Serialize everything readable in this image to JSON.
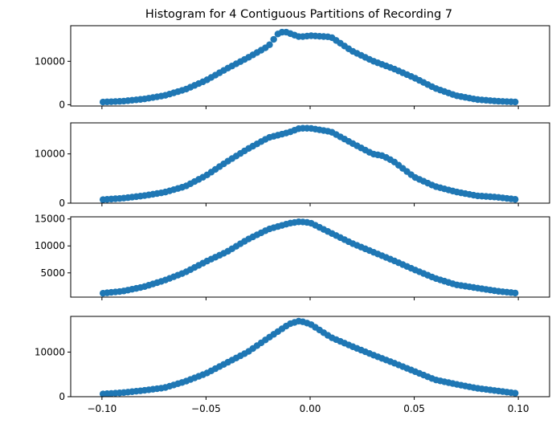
{
  "chart_data": {
    "type": "scatter",
    "title": "Histogram for 4 Contiguous Partitions of Recording 7",
    "shared_x": true,
    "xlim": [
      -0.115,
      0.115
    ],
    "x_ticks": [
      -0.1,
      -0.05,
      0.0,
      0.05,
      0.1
    ],
    "x_tick_labels": [
      "−0.10",
      "−0.05",
      "0.00",
      "0.05",
      "0.10"
    ],
    "x_range": [
      -0.0995,
      0.0985
    ],
    "num_points": 100,
    "color": "#1f77b4",
    "panels": [
      {
        "ylim": [
          -300,
          18200
        ],
        "y_ticks": [
          0,
          10000
        ],
        "y_tick_labels": [
          "0",
          "10000"
        ],
        "anchors": [
          [
            -0.1,
            600
          ],
          [
            -0.09,
            800
          ],
          [
            -0.08,
            1300
          ],
          [
            -0.07,
            2100
          ],
          [
            -0.06,
            3500
          ],
          [
            -0.05,
            5600
          ],
          [
            -0.04,
            8300
          ],
          [
            -0.03,
            10800
          ],
          [
            -0.02,
            13500
          ],
          [
            -0.015,
            16600
          ],
          [
            -0.012,
            16800
          ],
          [
            -0.005,
            15600
          ],
          [
            0.0,
            15900
          ],
          [
            0.01,
            15600
          ],
          [
            0.02,
            12400
          ],
          [
            0.03,
            10100
          ],
          [
            0.04,
            8300
          ],
          [
            0.05,
            6200
          ],
          [
            0.06,
            3800
          ],
          [
            0.07,
            2100
          ],
          [
            0.08,
            1200
          ],
          [
            0.09,
            800
          ],
          [
            0.1,
            600
          ]
        ]
      },
      {
        "ylim": [
          0,
          16300
        ],
        "y_ticks": [
          0,
          10000
        ],
        "y_tick_labels": [
          "0",
          "10000"
        ],
        "anchors": [
          [
            -0.1,
            700
          ],
          [
            -0.09,
            1000
          ],
          [
            -0.08,
            1500
          ],
          [
            -0.07,
            2200
          ],
          [
            -0.06,
            3400
          ],
          [
            -0.05,
            5600
          ],
          [
            -0.04,
            8400
          ],
          [
            -0.03,
            11000
          ],
          [
            -0.02,
            13300
          ],
          [
            -0.01,
            14400
          ],
          [
            -0.005,
            15200
          ],
          [
            0.0,
            15200
          ],
          [
            0.01,
            14500
          ],
          [
            0.02,
            12200
          ],
          [
            0.03,
            10000
          ],
          [
            0.035,
            9600
          ],
          [
            0.04,
            8500
          ],
          [
            0.05,
            5300
          ],
          [
            0.06,
            3400
          ],
          [
            0.07,
            2300
          ],
          [
            0.08,
            1500
          ],
          [
            0.09,
            1200
          ],
          [
            0.1,
            700
          ]
        ]
      },
      {
        "ylim": [
          500,
          15400
        ],
        "y_ticks": [
          5000,
          10000,
          15000
        ],
        "y_tick_labels": [
          "5000",
          "10000",
          "15000"
        ],
        "anchors": [
          [
            -0.1,
            1200
          ],
          [
            -0.09,
            1600
          ],
          [
            -0.08,
            2400
          ],
          [
            -0.07,
            3600
          ],
          [
            -0.06,
            5100
          ],
          [
            -0.05,
            7100
          ],
          [
            -0.04,
            8900
          ],
          [
            -0.03,
            11200
          ],
          [
            -0.02,
            13100
          ],
          [
            -0.01,
            14200
          ],
          [
            -0.005,
            14500
          ],
          [
            0.0,
            14300
          ],
          [
            0.01,
            12400
          ],
          [
            0.02,
            10500
          ],
          [
            0.03,
            8900
          ],
          [
            0.04,
            7300
          ],
          [
            0.05,
            5600
          ],
          [
            0.06,
            4000
          ],
          [
            0.07,
            2800
          ],
          [
            0.08,
            2200
          ],
          [
            0.09,
            1600
          ],
          [
            0.1,
            1200
          ]
        ]
      },
      {
        "ylim": [
          0,
          18000
        ],
        "y_ticks": [
          0,
          10000
        ],
        "y_tick_labels": [
          "0",
          "10000"
        ],
        "anchors": [
          [
            -0.1,
            600
          ],
          [
            -0.09,
            900
          ],
          [
            -0.08,
            1400
          ],
          [
            -0.07,
            2000
          ],
          [
            -0.06,
            3400
          ],
          [
            -0.05,
            5200
          ],
          [
            -0.04,
            7600
          ],
          [
            -0.03,
            10000
          ],
          [
            -0.02,
            13200
          ],
          [
            -0.01,
            16300
          ],
          [
            -0.005,
            17000
          ],
          [
            0.0,
            16300
          ],
          [
            0.01,
            13300
          ],
          [
            0.02,
            11300
          ],
          [
            0.03,
            9400
          ],
          [
            0.04,
            7600
          ],
          [
            0.05,
            5700
          ],
          [
            0.06,
            3800
          ],
          [
            0.07,
            2800
          ],
          [
            0.08,
            1900
          ],
          [
            0.09,
            1300
          ],
          [
            0.1,
            700
          ]
        ]
      }
    ]
  }
}
